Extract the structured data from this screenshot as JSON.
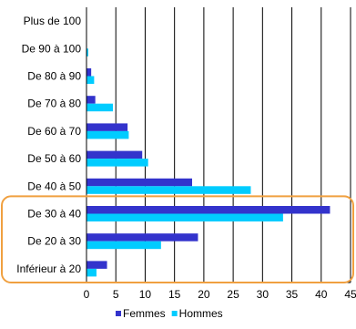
{
  "chart_data": {
    "type": "bar",
    "orientation": "horizontal",
    "categories": [
      "Plus de 100",
      "De 90 à 100",
      "De 80 à 90",
      "De 70 à 80",
      "De 60 à 70",
      "De 50 à 60",
      "De 40 à 50",
      "De 30 à 40",
      "De 20 à 30",
      "Inférieur à 20"
    ],
    "series": [
      {
        "name": "Femmes",
        "color": "#3333cc",
        "values": [
          0,
          0,
          0.8,
          1.5,
          7,
          9.5,
          18,
          41.5,
          19,
          3.5
        ]
      },
      {
        "name": "Hommes",
        "color": "#00ccff",
        "values": [
          0,
          0.3,
          1.3,
          4.5,
          7.2,
          10.5,
          28,
          33.5,
          12.7,
          1.7
        ]
      }
    ],
    "xlim": [
      0,
      45
    ],
    "xticks": [
      0,
      5,
      10,
      15,
      20,
      25,
      30,
      35,
      40,
      45
    ],
    "grid": true,
    "legend_position": "bottom",
    "highlight": {
      "categories": [
        "De 30 à 40",
        "De 20 à 30",
        "Inférieur à 20"
      ],
      "color": "#f0a040"
    }
  }
}
